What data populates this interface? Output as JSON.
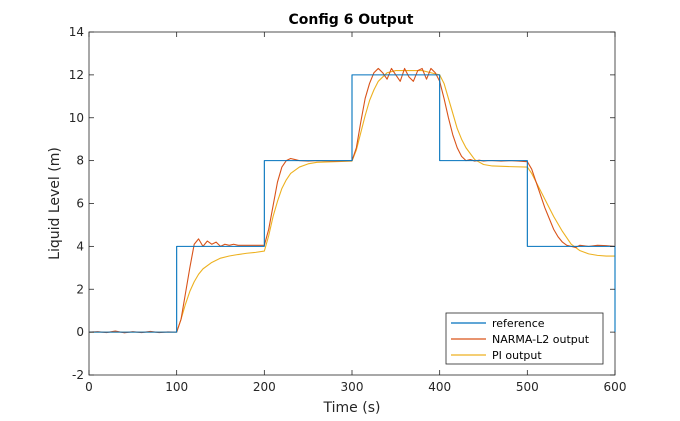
{
  "chart_data": {
    "type": "line",
    "title": "Config 6 Output",
    "xlabel": "Time (s)",
    "ylabel": "Liquid Level (m)",
    "xlim": [
      0,
      600
    ],
    "ylim": [
      -2,
      14
    ],
    "xticks": [
      0,
      100,
      200,
      300,
      400,
      500,
      600
    ],
    "yticks": [
      -2,
      0,
      2,
      4,
      6,
      8,
      10,
      12,
      14
    ],
    "grid": false,
    "legend_position": "bottom-right",
    "series": [
      {
        "name": "reference",
        "color": "#0072BD",
        "x": [
          0,
          100,
          100,
          200,
          200,
          300,
          300,
          400,
          400,
          500,
          500,
          600,
          600
        ],
        "y": [
          0,
          0,
          4,
          4,
          8,
          8,
          12,
          12,
          8,
          8,
          4,
          4,
          0
        ]
      },
      {
        "name": "NARMA-L2 output",
        "color": "#D95319",
        "x": [
          0,
          10,
          20,
          30,
          40,
          50,
          60,
          70,
          80,
          90,
          100,
          105,
          110,
          115,
          120,
          125,
          130,
          135,
          140,
          145,
          150,
          155,
          160,
          165,
          170,
          180,
          190,
          200,
          205,
          210,
          215,
          220,
          225,
          230,
          235,
          240,
          250,
          260,
          280,
          300,
          305,
          310,
          315,
          320,
          325,
          330,
          335,
          340,
          345,
          350,
          355,
          360,
          365,
          370,
          375,
          380,
          385,
          390,
          395,
          400,
          405,
          410,
          415,
          420,
          425,
          430,
          435,
          440,
          445,
          450,
          455,
          460,
          470,
          480,
          490,
          500,
          505,
          510,
          515,
          520,
          525,
          530,
          535,
          540,
          545,
          550,
          555,
          560,
          570,
          580,
          590,
          600
        ],
        "y": [
          0,
          0.02,
          -0.02,
          0.05,
          -0.03,
          0.02,
          -0.02,
          0.03,
          -0.02,
          0.01,
          0,
          0.6,
          1.8,
          3.0,
          4.1,
          4.35,
          4.0,
          4.25,
          4.1,
          4.2,
          4.0,
          4.1,
          4.05,
          4.1,
          4.05,
          4.05,
          4.05,
          4.05,
          4.8,
          5.9,
          7.0,
          7.7,
          8.0,
          8.1,
          8.05,
          8.0,
          7.98,
          8.0,
          7.98,
          8.0,
          8.6,
          9.8,
          10.9,
          11.6,
          12.1,
          12.3,
          12.1,
          11.8,
          12.3,
          12.0,
          11.7,
          12.3,
          11.9,
          11.7,
          12.2,
          12.3,
          11.8,
          12.3,
          12.1,
          11.7,
          10.9,
          10.0,
          9.2,
          8.6,
          8.2,
          8.0,
          8.05,
          7.98,
          8.02,
          7.98,
          8.0,
          8.0,
          7.98,
          8.0,
          7.98,
          7.95,
          7.6,
          7.0,
          6.4,
          5.8,
          5.3,
          4.8,
          4.45,
          4.2,
          4.05,
          4.0,
          3.95,
          4.05,
          4.0,
          4.05,
          4.03,
          4.0
        ]
      },
      {
        "name": "PI output",
        "color": "#EDB120",
        "x": [
          0,
          50,
          100,
          105,
          110,
          115,
          120,
          125,
          130,
          140,
          150,
          160,
          170,
          180,
          190,
          200,
          205,
          210,
          215,
          220,
          225,
          230,
          240,
          250,
          260,
          280,
          300,
          305,
          310,
          315,
          320,
          325,
          330,
          340,
          350,
          360,
          380,
          390,
          400,
          405,
          410,
          415,
          420,
          425,
          430,
          440,
          450,
          460,
          480,
          500,
          505,
          510,
          520,
          530,
          540,
          550,
          560,
          570,
          580,
          590,
          600
        ],
        "y": [
          0,
          0,
          0,
          0.6,
          1.3,
          1.9,
          2.35,
          2.7,
          2.95,
          3.25,
          3.45,
          3.55,
          3.62,
          3.68,
          3.72,
          3.78,
          4.5,
          5.4,
          6.1,
          6.7,
          7.1,
          7.4,
          7.7,
          7.85,
          7.92,
          7.95,
          7.98,
          8.5,
          9.3,
          10.1,
          10.8,
          11.3,
          11.7,
          12.1,
          12.2,
          12.2,
          12.2,
          12.1,
          12.0,
          11.6,
          10.9,
          10.2,
          9.5,
          9.0,
          8.6,
          8.05,
          7.82,
          7.75,
          7.72,
          7.7,
          7.4,
          7.0,
          6.2,
          5.4,
          4.7,
          4.1,
          3.8,
          3.65,
          3.58,
          3.55,
          3.55
        ]
      }
    ]
  }
}
